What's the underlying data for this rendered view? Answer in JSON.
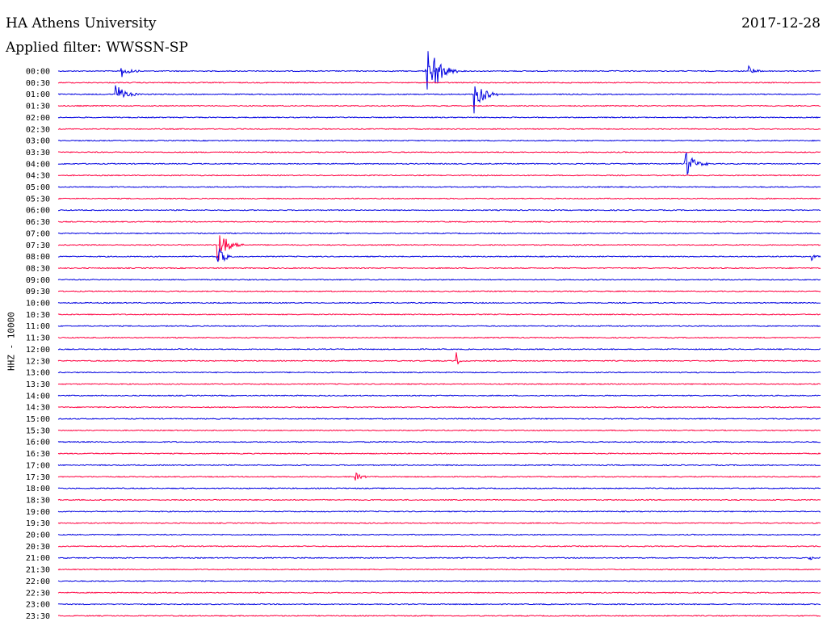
{
  "header": {
    "station": "HA Athens University",
    "date": "2017-12-28",
    "filter": "Applied filter: WWSSN-SP",
    "channel": "HHZ - 10000"
  },
  "colors": {
    "even": "#0000e0",
    "odd": "#ff0040"
  },
  "chart_data": {
    "type": "line",
    "title": "HA Athens University",
    "date": "2017-12-28",
    "channel": "HHZ - 10000",
    "filter": "WWSSN-SP",
    "row_labels": [
      "00:00",
      "00:30",
      "01:00",
      "01:30",
      "02:00",
      "02:30",
      "03:00",
      "03:30",
      "04:00",
      "04:30",
      "05:00",
      "05:30",
      "06:00",
      "06:30",
      "07:00",
      "07:30",
      "08:00",
      "08:30",
      "09:00",
      "09:30",
      "10:00",
      "10:30",
      "11:00",
      "11:30",
      "12:00",
      "12:30",
      "13:00",
      "13:30",
      "14:00",
      "14:30",
      "15:00",
      "15:30",
      "16:00",
      "16:30",
      "17:00",
      "17:30",
      "18:00",
      "18:30",
      "19:00",
      "19:30",
      "20:00",
      "20:30",
      "21:00",
      "21:30",
      "22:00",
      "22:30",
      "23:00",
      "23:30"
    ],
    "trace_minutes": 30,
    "events": [
      {
        "row": 0,
        "minute": 2.5,
        "amp": 0.6,
        "dur": 0.8
      },
      {
        "row": 0,
        "minute": 14.5,
        "amp": 2.0,
        "dur": 1.2
      },
      {
        "row": 0,
        "minute": 14.8,
        "amp": 1.3,
        "dur": 0.8
      },
      {
        "row": 0,
        "minute": 27.2,
        "amp": 0.5,
        "dur": 0.6
      },
      {
        "row": 2,
        "minute": 2.3,
        "amp": 0.8,
        "dur": 1.0
      },
      {
        "row": 2,
        "minute": 16.4,
        "amp": 1.6,
        "dur": 0.9
      },
      {
        "row": 8,
        "minute": 24.7,
        "amp": 1.1,
        "dur": 0.9
      },
      {
        "row": 15,
        "minute": 6.3,
        "amp": 1.6,
        "dur": 1.0
      },
      {
        "row": 16,
        "minute": 6.3,
        "amp": 0.9,
        "dur": 0.7
      },
      {
        "row": 16,
        "minute": 29.7,
        "amp": 0.3,
        "dur": 0.5
      },
      {
        "row": 25,
        "minute": 15.7,
        "amp": 0.5,
        "dur": 0.2
      },
      {
        "row": 35,
        "minute": 11.7,
        "amp": 0.4,
        "dur": 0.6
      },
      {
        "row": 42,
        "minute": 29.6,
        "amp": 0.25,
        "dur": 0.3
      }
    ]
  }
}
